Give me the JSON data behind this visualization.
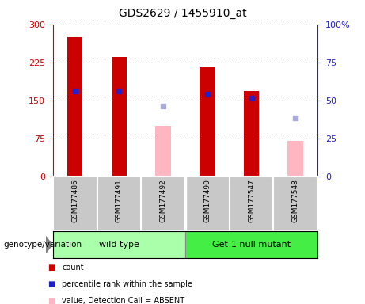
{
  "title": "GDS2629 / 1455910_at",
  "samples": [
    "GSM177486",
    "GSM177491",
    "GSM177492",
    "GSM177490",
    "GSM177547",
    "GSM177548"
  ],
  "count_values": [
    275,
    235,
    null,
    215,
    168,
    null
  ],
  "percentile_values": [
    168,
    168,
    null,
    162,
    155,
    null
  ],
  "absent_value_values": [
    null,
    null,
    100,
    null,
    null,
    70
  ],
  "absent_rank_values": [
    null,
    null,
    138,
    null,
    null,
    115
  ],
  "ylim_left": [
    0,
    300
  ],
  "ylim_right": [
    0,
    100
  ],
  "yticks_left": [
    0,
    75,
    150,
    225,
    300
  ],
  "yticks_right": [
    0,
    25,
    50,
    75,
    100
  ],
  "count_color": "#CC0000",
  "percentile_color": "#2020CC",
  "absent_value_color": "#FFB6C1",
  "absent_rank_color": "#AAAADD",
  "bg_color": "#C8C8C8",
  "wt_color": "#AAFFAA",
  "mut_color": "#44EE44",
  "group_label": "genotype/variation",
  "wt_label": "wild type",
  "mut_label": "Get-1 null mutant"
}
